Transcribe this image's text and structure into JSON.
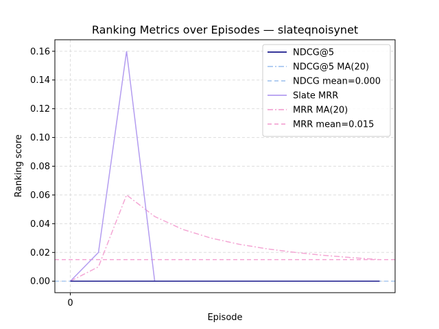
{
  "chart_data": {
    "type": "line",
    "title": "Ranking Metrics over Episodes — slateqnoisynet",
    "xlabel": "Episode",
    "ylabel": "Ranking score",
    "xlim": [
      -0.55,
      11.55
    ],
    "ylim": [
      -0.008,
      0.168
    ],
    "x_ticks": [
      0
    ],
    "x_tick_labels": [
      "0"
    ],
    "y_ticks": [
      0.0,
      0.02,
      0.04,
      0.06,
      0.08,
      0.1,
      0.12,
      0.14,
      0.16
    ],
    "y_tick_labels": [
      "0.00",
      "0.02",
      "0.04",
      "0.06",
      "0.08",
      "0.10",
      "0.12",
      "0.14",
      "0.16"
    ],
    "grid": true,
    "legend_position": "top-right",
    "x": [
      0,
      1,
      2,
      3,
      4,
      5,
      6,
      7,
      8,
      9,
      10,
      11
    ],
    "series": [
      {
        "name": "NDCG@5",
        "color": "#1a1a8c",
        "style": "solid",
        "values": [
          0,
          0,
          0,
          0,
          0,
          0,
          0,
          0,
          0,
          0,
          0,
          0
        ]
      },
      {
        "name": "NDCG@5 MA(20)",
        "color": "#a8c8f0",
        "style": "dashdot",
        "values": [
          0,
          0,
          0,
          0,
          0,
          0,
          0,
          0,
          0,
          0,
          0,
          0
        ]
      },
      {
        "name": "NDCG mean=0.000",
        "color": "#a8c8f0",
        "style": "dashed",
        "hline": 0.0
      },
      {
        "name": "Slate MRR",
        "color": "#b39cf0",
        "style": "solid",
        "values": [
          0,
          0.02,
          0.16,
          0,
          0,
          0,
          0,
          0,
          0,
          0,
          0,
          0
        ]
      },
      {
        "name": "MRR MA(20)",
        "color": "#f4a6d4",
        "style": "dashdot",
        "values": [
          0,
          0.01,
          0.06,
          0.045,
          0.036,
          0.03,
          0.0257,
          0.0225,
          0.02,
          0.018,
          0.0164,
          0.015
        ]
      },
      {
        "name": "MRR mean=0.015",
        "color": "#f4a6d4",
        "style": "dashed",
        "hline": 0.015
      }
    ]
  }
}
